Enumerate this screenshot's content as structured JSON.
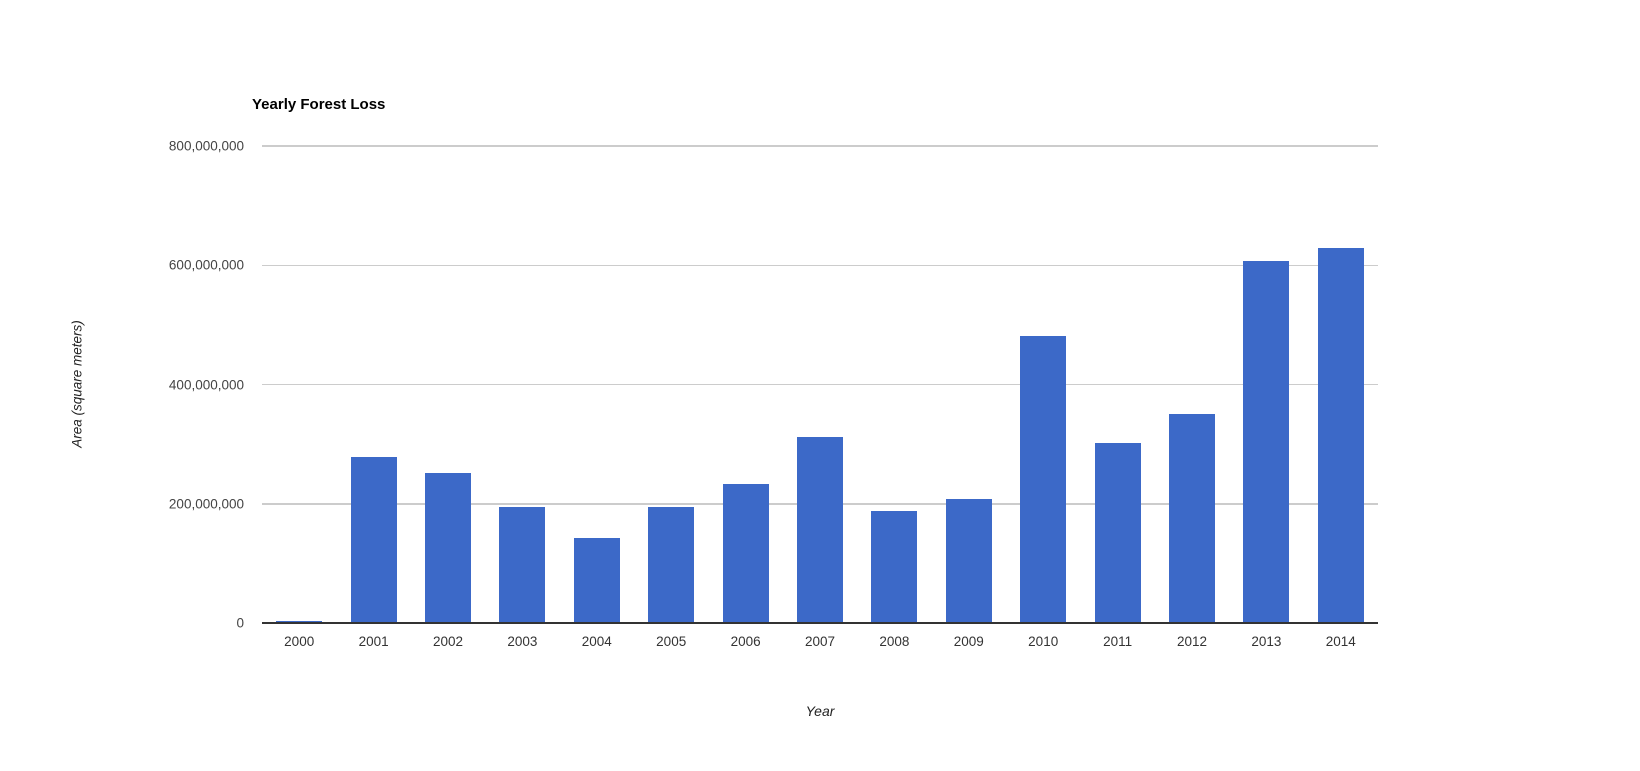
{
  "chart_data": {
    "type": "bar",
    "title": "Yearly Forest Loss",
    "xlabel": "Year",
    "ylabel": "Area (square meters)",
    "categories": [
      "2000",
      "2001",
      "2002",
      "2003",
      "2004",
      "2005",
      "2006",
      "2007",
      "2008",
      "2009",
      "2010",
      "2011",
      "2012",
      "2013",
      "2014"
    ],
    "values": [
      3000000,
      279000000,
      251000000,
      194000000,
      142000000,
      194000000,
      233000000,
      312000000,
      188000000,
      208000000,
      482000000,
      302000000,
      350000000,
      607000000,
      629000000
    ],
    "ylim": [
      0,
      800000000
    ],
    "ytick_values": [
      0,
      200000000,
      400000000,
      600000000,
      800000000
    ],
    "ytick_labels": [
      "0",
      "200,000,000",
      "400,000,000",
      "600,000,000",
      "800,000,000"
    ],
    "grid": true,
    "legend": "none",
    "colors": {
      "bar": "#3C69C8",
      "gridline": "#CCCCCC",
      "axis_line": "#333333",
      "y_tick_label": "#444444",
      "x_tick_label": "#333333",
      "title": "#000000",
      "axis_title": "#222222",
      "background": "#FFFFFF"
    }
  }
}
